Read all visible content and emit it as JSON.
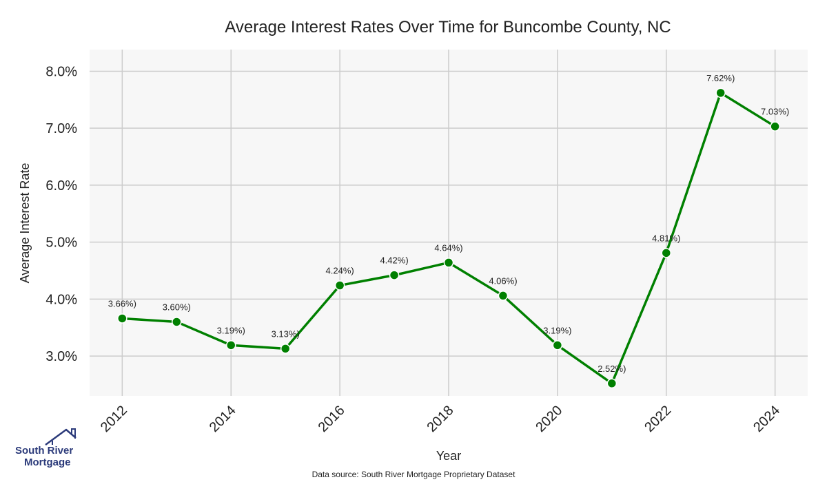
{
  "chart_data": {
    "type": "line",
    "title": "Average Interest Rates Over Time for Buncombe County, NC",
    "xlabel": "Year",
    "ylabel": "Average Interest Rate",
    "x": [
      2012,
      2013,
      2014,
      2015,
      2016,
      2017,
      2018,
      2019,
      2020,
      2021,
      2022,
      2023,
      2024
    ],
    "series": [
      {
        "values": [
          3.66,
          3.6,
          3.19,
          3.13,
          4.24,
          4.42,
          4.64,
          4.06,
          3.19,
          2.52,
          4.81,
          7.62,
          7.03
        ]
      }
    ],
    "data_labels": [
      "3.66%)",
      "3.60%)",
      "3.19%)",
      "3.13%)",
      "4.24%)",
      "4.42%)",
      "4.64%)",
      "4.06%)",
      "3.19%)",
      "2.52%)",
      "4.81%)",
      "7.62%)",
      "7.03%)"
    ],
    "x_ticks": [
      2012,
      2014,
      2016,
      2018,
      2020,
      2022,
      2024
    ],
    "y_ticks": [
      3.0,
      4.0,
      5.0,
      6.0,
      7.0,
      8.0
    ],
    "y_tick_labels": [
      "3.0%",
      "4.0%",
      "5.0%",
      "6.0%",
      "7.0%",
      "8.0%"
    ],
    "xlim": [
      2011.4,
      2024.6
    ],
    "ylim": [
      2.3,
      8.38
    ],
    "grid": true,
    "line_color": "#008000",
    "marker_color": "#008000",
    "plot_background": "#f7f7f7",
    "grid_color": "#cccccc"
  },
  "footer": {
    "source": "Data source: South River Mortgage Proprietary Dataset"
  },
  "logo": {
    "line1": "South River",
    "line2": "Mortgage",
    "icon": "house-icon",
    "color": "#2b3a7a"
  }
}
